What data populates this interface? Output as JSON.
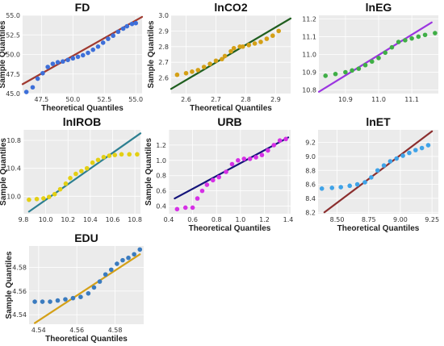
{
  "chart_data": [
    {
      "type": "scatter",
      "title": "FD",
      "xlabel": "Theoretical Quantiles",
      "ylabel": "Sample Quantiles",
      "xlim": [
        46,
        55.5
      ],
      "ylim": [
        45,
        55
      ],
      "xticks": [
        47.5,
        50.0,
        52.5,
        55.0
      ],
      "yticks": [
        45.0,
        47.5,
        50.0,
        52.5,
        55.0
      ],
      "tick_labels_x": [
        "47.5",
        "50.0",
        "52.5",
        "55.0"
      ],
      "tick_labels_y": [
        "45.0",
        "47.5",
        "50.0",
        "52.5",
        "55.0"
      ],
      "reference_line": [
        [
          46,
          46.2
        ],
        [
          55.5,
          54.8
        ]
      ],
      "point_color": "#3d6fd9",
      "line_color": "#a0392f",
      "points": [
        [
          46.3,
          45.2
        ],
        [
          46.8,
          45.8
        ],
        [
          47.2,
          46.9
        ],
        [
          47.6,
          47.6
        ],
        [
          48.0,
          48.4
        ],
        [
          48.4,
          48.8
        ],
        [
          48.8,
          49.0
        ],
        [
          49.2,
          49.1
        ],
        [
          49.6,
          49.3
        ],
        [
          50.0,
          49.5
        ],
        [
          50.4,
          49.7
        ],
        [
          50.8,
          49.9
        ],
        [
          51.2,
          50.2
        ],
        [
          51.6,
          50.6
        ],
        [
          52.0,
          51.0
        ],
        [
          52.4,
          51.5
        ],
        [
          52.8,
          52.0
        ],
        [
          53.2,
          52.4
        ],
        [
          53.6,
          52.9
        ],
        [
          54.0,
          53.3
        ],
        [
          54.3,
          53.6
        ],
        [
          54.7,
          53.9
        ],
        [
          55.0,
          54.0
        ]
      ]
    },
    {
      "type": "scatter",
      "title": "lnCO2",
      "xlabel": "Theoretical Quantiles",
      "ylabel": "Sample Quantiles",
      "xlim": [
        2.55,
        2.95
      ],
      "ylim": [
        2.5,
        3.0
      ],
      "xticks": [
        2.6,
        2.7,
        2.8,
        2.9
      ],
      "yticks": [
        2.6,
        2.7,
        2.8,
        2.9,
        3.0
      ],
      "tick_labels_x": [
        "2.6",
        "2.7",
        "2.8",
        "2.9"
      ],
      "tick_labels_y": [
        "2.6",
        "2.7",
        "2.8",
        "2.9",
        "3.0"
      ],
      "reference_line": [
        [
          2.55,
          2.53
        ],
        [
          2.95,
          2.98
        ]
      ],
      "point_color": "#d4a017",
      "line_color": "#1f5e1f",
      "points": [
        [
          2.57,
          2.62
        ],
        [
          2.6,
          2.63
        ],
        [
          2.62,
          2.64
        ],
        [
          2.64,
          2.65
        ],
        [
          2.66,
          2.67
        ],
        [
          2.68,
          2.69
        ],
        [
          2.7,
          2.71
        ],
        [
          2.72,
          2.72
        ],
        [
          2.73,
          2.74
        ],
        [
          2.75,
          2.77
        ],
        [
          2.76,
          2.79
        ],
        [
          2.78,
          2.8
        ],
        [
          2.79,
          2.8
        ],
        [
          2.81,
          2.81
        ],
        [
          2.83,
          2.82
        ],
        [
          2.85,
          2.83
        ],
        [
          2.87,
          2.85
        ],
        [
          2.89,
          2.87
        ],
        [
          2.91,
          2.9
        ]
      ]
    },
    {
      "type": "scatter",
      "title": "lnEG",
      "xlabel": "",
      "ylabel": "",
      "xlim": [
        10.82,
        11.18
      ],
      "ylim": [
        10.78,
        11.22
      ],
      "xticks": [
        10.9,
        11.0,
        11.1
      ],
      "yticks": [
        10.8,
        10.9,
        11.0,
        11.1,
        11.2
      ],
      "tick_labels_x": [
        "10.9",
        "11.0",
        "11.1"
      ],
      "tick_labels_y": [
        "10.8",
        "10.9",
        "11.0",
        "11.1",
        "11.2"
      ],
      "reference_line": [
        [
          10.82,
          10.79
        ],
        [
          11.16,
          11.18
        ]
      ],
      "point_color": "#3fae46",
      "line_color": "#9b35e0",
      "points": [
        [
          10.84,
          10.88
        ],
        [
          10.87,
          10.89
        ],
        [
          10.9,
          10.9
        ],
        [
          10.92,
          10.91
        ],
        [
          10.94,
          10.92
        ],
        [
          10.96,
          10.94
        ],
        [
          10.98,
          10.96
        ],
        [
          11.0,
          10.98
        ],
        [
          11.02,
          11.01
        ],
        [
          11.04,
          11.04
        ],
        [
          11.06,
          11.07
        ],
        [
          11.08,
          11.08
        ],
        [
          11.1,
          11.09
        ],
        [
          11.12,
          11.1
        ],
        [
          11.14,
          11.11
        ],
        [
          11.17,
          11.12
        ]
      ]
    },
    {
      "type": "scatter",
      "title": "lnIROB",
      "xlabel": "",
      "ylabel": "Sample Quantiles",
      "xlim": [
        9.8,
        10.85
      ],
      "ylim": [
        9.75,
        10.95
      ],
      "xticks": [
        9.8,
        10.0,
        10.2,
        10.4,
        10.6,
        10.8
      ],
      "yticks": [
        10.0,
        10.4,
        10.8
      ],
      "tick_labels_x": [
        "9.8",
        "10.0",
        "10.2",
        "10.4",
        "10.6",
        "10.8"
      ],
      "tick_labels_y": [
        "10.0",
        "10.4",
        "10.8"
      ],
      "reference_line": [
        [
          9.85,
          9.78
        ],
        [
          10.85,
          10.9
        ]
      ],
      "point_color": "#e3cf14",
      "line_color": "#2d7f91",
      "points": [
        [
          9.85,
          9.95
        ],
        [
          9.92,
          9.96
        ],
        [
          9.98,
          9.97
        ],
        [
          10.03,
          9.99
        ],
        [
          10.08,
          10.03
        ],
        [
          10.13,
          10.1
        ],
        [
          10.18,
          10.18
        ],
        [
          10.22,
          10.26
        ],
        [
          10.27,
          10.32
        ],
        [
          10.32,
          10.36
        ],
        [
          10.37,
          10.4
        ],
        [
          10.42,
          10.48
        ],
        [
          10.47,
          10.52
        ],
        [
          10.52,
          10.56
        ],
        [
          10.57,
          10.58
        ],
        [
          10.62,
          10.59
        ],
        [
          10.68,
          10.6
        ],
        [
          10.75,
          10.6
        ],
        [
          10.82,
          10.6
        ]
      ]
    },
    {
      "type": "scatter",
      "title": "URB",
      "xlabel": "Theoretical Quantiles",
      "ylabel": "Sample Quantiles",
      "xlim": [
        0.4,
        1.42
      ],
      "ylim": [
        0.3,
        1.4
      ],
      "xticks": [
        0.4,
        0.6,
        0.8,
        1.0,
        1.2,
        1.4
      ],
      "yticks": [
        0.4,
        0.6,
        0.8,
        1.0,
        1.2
      ],
      "tick_labels_x": [
        "0.4",
        "0.6",
        "0.8",
        "1.0",
        "1.2",
        "1.4"
      ],
      "tick_labels_y": [
        "0.4",
        "0.6",
        "0.8",
        "1.0",
        "1.2"
      ],
      "reference_line": [
        [
          0.45,
          0.5
        ],
        [
          1.4,
          1.3
        ]
      ],
      "point_color": "#d630e6",
      "line_color": "#14147a",
      "points": [
        [
          0.47,
          0.36
        ],
        [
          0.54,
          0.38
        ],
        [
          0.6,
          0.38
        ],
        [
          0.64,
          0.5
        ],
        [
          0.68,
          0.6
        ],
        [
          0.72,
          0.68
        ],
        [
          0.77,
          0.74
        ],
        [
          0.82,
          0.78
        ],
        [
          0.88,
          0.85
        ],
        [
          0.93,
          0.95
        ],
        [
          0.98,
          1.0
        ],
        [
          1.03,
          1.02
        ],
        [
          1.08,
          1.02
        ],
        [
          1.13,
          1.04
        ],
        [
          1.18,
          1.07
        ],
        [
          1.23,
          1.13
        ],
        [
          1.28,
          1.2
        ],
        [
          1.33,
          1.26
        ],
        [
          1.38,
          1.28
        ]
      ]
    },
    {
      "type": "scatter",
      "title": "lnET",
      "xlabel": "Theoretical Quantiles",
      "ylabel": "",
      "xlim": [
        8.35,
        9.3
      ],
      "ylim": [
        8.18,
        9.38
      ],
      "xticks": [
        8.5,
        8.75,
        9.0,
        9.25
      ],
      "yticks": [
        8.2,
        8.4,
        8.6,
        8.8,
        9.0,
        9.2
      ],
      "tick_labels_x": [
        "8.50",
        "8.75",
        "9.00",
        "9.25"
      ],
      "tick_labels_y": [
        "8.2",
        "8.4",
        "8.6",
        "8.8",
        "9.0",
        "9.2"
      ],
      "reference_line": [
        [
          8.4,
          8.2
        ],
        [
          9.25,
          9.36
        ]
      ],
      "point_color": "#3fa3e8",
      "line_color": "#8b2e2e",
      "points": [
        [
          8.38,
          8.54
        ],
        [
          8.46,
          8.55
        ],
        [
          8.53,
          8.56
        ],
        [
          8.6,
          8.58
        ],
        [
          8.66,
          8.6
        ],
        [
          8.72,
          8.63
        ],
        [
          8.77,
          8.7
        ],
        [
          8.82,
          8.8
        ],
        [
          8.87,
          8.87
        ],
        [
          8.92,
          8.93
        ],
        [
          8.97,
          8.97
        ],
        [
          9.02,
          9.01
        ],
        [
          9.07,
          9.05
        ],
        [
          9.12,
          9.09
        ],
        [
          9.17,
          9.12
        ],
        [
          9.22,
          9.16
        ]
      ]
    },
    {
      "type": "scatter",
      "title": "EDU",
      "xlabel": "Theoretical Quantiles",
      "ylabel": "Sample Quantiles",
      "xlim": [
        4.535,
        4.595
      ],
      "ylim": [
        4.532,
        4.598
      ],
      "xticks": [
        4.54,
        4.56,
        4.58
      ],
      "yticks": [
        4.54,
        4.56,
        4.58
      ],
      "tick_labels_x": [
        "4.54",
        "4.56",
        "4.58"
      ],
      "tick_labels_y": [
        "4.54",
        "4.56",
        "4.58"
      ],
      "reference_line": [
        [
          4.538,
          4.533
        ],
        [
          4.593,
          4.591
        ]
      ],
      "point_color": "#3a7bbf",
      "line_color": "#d4a017",
      "points": [
        [
          4.538,
          4.551
        ],
        [
          4.542,
          4.551
        ],
        [
          4.546,
          4.551
        ],
        [
          4.55,
          4.552
        ],
        [
          4.554,
          4.553
        ],
        [
          4.558,
          4.554
        ],
        [
          4.562,
          4.555
        ],
        [
          4.566,
          4.558
        ],
        [
          4.569,
          4.563
        ],
        [
          4.572,
          4.568
        ],
        [
          4.575,
          4.574
        ],
        [
          4.578,
          4.578
        ],
        [
          4.581,
          4.583
        ],
        [
          4.584,
          4.586
        ],
        [
          4.587,
          4.588
        ],
        [
          4.59,
          4.591
        ],
        [
          4.593,
          4.595
        ]
      ]
    }
  ]
}
